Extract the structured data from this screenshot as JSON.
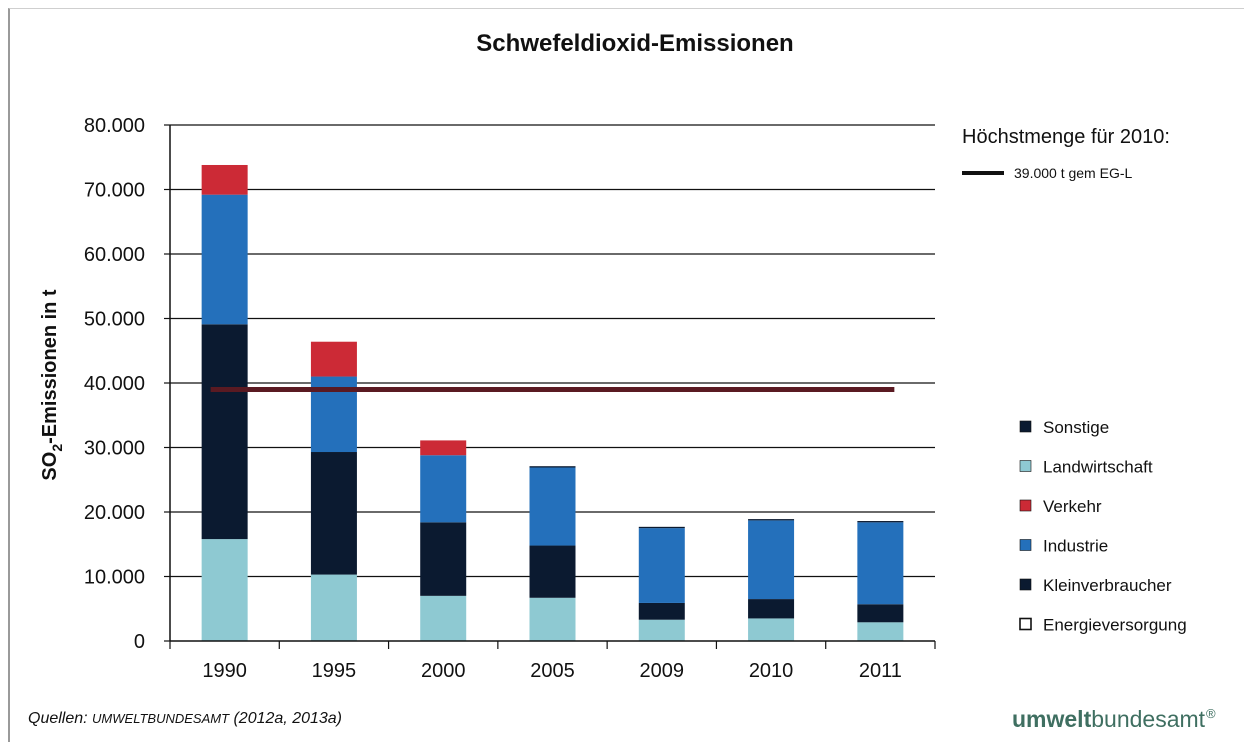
{
  "chart_data": {
    "type": "bar",
    "stacked": true,
    "title": "Schwefeldioxid-Emissionen",
    "ylabel": "SO2-Emissionen in t",
    "ylabel_main": "SO",
    "ylabel_sub": "2",
    "ylabel_rest": "-Emissionen in t",
    "ylim": [
      0,
      80000
    ],
    "yticks": [
      0,
      10000,
      20000,
      30000,
      40000,
      50000,
      60000,
      70000,
      80000
    ],
    "ytick_labels": [
      "0",
      "10.000",
      "20.000",
      "30.000",
      "40.000",
      "50.000",
      "60.000",
      "70.000",
      "80.000"
    ],
    "categories": [
      "1990",
      "1995",
      "2000",
      "2005",
      "2009",
      "2010",
      "2011"
    ],
    "grid": true,
    "legend_position": "right",
    "series": [
      {
        "name": "Energieversorgung",
        "color": "#8ec9d2",
        "values": [
          15800,
          10300,
          7000,
          6700,
          3300,
          3500,
          2900
        ]
      },
      {
        "name": "Kleinverbraucher",
        "color": "#0b1a30",
        "values": [
          33300,
          19000,
          11400,
          8100,
          2600,
          3000,
          2800
        ]
      },
      {
        "name": "Industrie",
        "color": "#2470bb",
        "values": [
          20100,
          11700,
          10400,
          12100,
          11600,
          12200,
          12700
        ]
      },
      {
        "name": "Verkehr",
        "color": "#cc2a36",
        "values": [
          4600,
          5400,
          2300,
          0,
          0,
          0,
          0
        ]
      },
      {
        "name": "Landwirtschaft",
        "color": "#8ec9d2",
        "values": [
          0,
          0,
          0,
          0,
          0,
          0,
          0
        ]
      },
      {
        "name": "Sonstige",
        "color": "#0b1a30",
        "values": [
          0,
          0,
          0,
          200,
          200,
          200,
          200
        ]
      }
    ],
    "legend_entries": [
      {
        "label": "Sonstige",
        "marker_color": "#0b1a30",
        "marker_style": "filled"
      },
      {
        "label": "Landwirtschaft",
        "marker_color": "#8ec9d2",
        "marker_style": "filled"
      },
      {
        "label": "Verkehr",
        "marker_color": "#cc2a36",
        "marker_style": "filled"
      },
      {
        "label": "Industrie",
        "marker_color": "#2470bb",
        "marker_style": "filled"
      },
      {
        "label": "Kleinverbraucher",
        "marker_color": "#0b1a30",
        "marker_style": "filled"
      },
      {
        "label": "Energieversorgung",
        "marker_color": "#ffffff",
        "marker_style": "outline"
      }
    ],
    "reference_line": {
      "value": 39000,
      "color": "#5a1a22",
      "legend_title": "Höchstmenge für 2010:",
      "legend_label": "39.000 t gem EG-L"
    }
  },
  "footer": {
    "source_prefix": "Quellen: ",
    "source_caps": "UMWELTBUNDESAMT",
    "source_suffix": " (2012a, 2013a)",
    "logo_bold": "umwelt",
    "logo_regular": "bundesamt",
    "logo_mark": "®"
  }
}
